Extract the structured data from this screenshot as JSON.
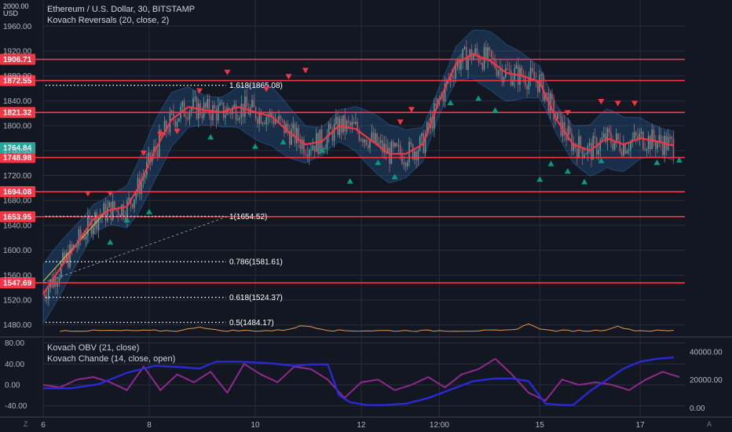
{
  "header": {
    "currency": "USD",
    "top_value": "2000.00",
    "title": "Ethereum / U.S. Dollar, 30, BITSTAMP",
    "indicator_main": "Kovach Reversals (20, close, 2)",
    "indicator_sub1": "Kovach OBV (21, close)",
    "indicator_sub2": "Kovach Chande (14, close, open)",
    "corner_left": "Z",
    "corner_right": "A"
  },
  "colors": {
    "background": "#131722",
    "red_line": "#f23645",
    "band": "#2b6cb0",
    "obv": "#2929d6",
    "chande": "#8e2a8e",
    "volume": "#e5954a",
    "up_marker": "#089981",
    "down_marker": "#f23645"
  },
  "chart_data": [
    {
      "type": "line",
      "name": "price",
      "y_axis_ticks": [
        1480,
        1520,
        1560,
        1600,
        1640,
        1680,
        1720,
        1760,
        1800,
        1840,
        1880,
        1920,
        1960
      ],
      "y_tick_labels": [
        "1480.00",
        "1520.00",
        "1560.00",
        "1600.00",
        "1640.00",
        "1680.00",
        "1720.00",
        "1760.00",
        "1800.00",
        "1840.00",
        "1880.00",
        "1920.00",
        "1960.00"
      ],
      "ylim": [
        1462,
        2002
      ],
      "x_tick_labels": [
        "6",
        "8",
        "10",
        "12",
        "12:00",
        "15",
        "17"
      ],
      "x_tick_pos": [
        0.5,
        2.4,
        4.3,
        6.2,
        7.6,
        9.4,
        11.2
      ],
      "xlim": [
        0.5,
        12
      ],
      "current_price": {
        "label": "1764.84",
        "value": 1764.84
      },
      "horizontal_levels": [
        {
          "label": "1906.71",
          "value": 1906.71
        },
        {
          "label": "1872.55",
          "value": 1872.55
        },
        {
          "label": "1821.32",
          "value": 1821.32
        },
        {
          "label": "1748.98",
          "value": 1748.98
        },
        {
          "label": "1694.08",
          "value": 1694.08
        },
        {
          "label": "1653.95",
          "value": 1653.95
        },
        {
          "label": "1547.69",
          "value": 1547.69
        }
      ],
      "fib_levels": [
        {
          "label": "1.618(1865.08)",
          "value": 1865.08
        },
        {
          "label": "1(1654.52)",
          "value": 1654.52
        },
        {
          "label": "0.786(1581.61)",
          "value": 1581.61
        },
        {
          "label": "0.618(1524.37)",
          "value": 1524.37
        },
        {
          "label": "0.5(1484.17)",
          "value": 1484.17
        }
      ],
      "ma_series": {
        "x": [
          0.5,
          0.8,
          1.1,
          1.4,
          1.7,
          2.0,
          2.2,
          2.5,
          2.8,
          3.1,
          3.4,
          3.7,
          4.0,
          4.3,
          4.6,
          4.9,
          5.2,
          5.5,
          5.8,
          6.1,
          6.4,
          6.7,
          7.0,
          7.3,
          7.6,
          7.9,
          8.2,
          8.5,
          8.8,
          9.1,
          9.4,
          9.7,
          10.0,
          10.3,
          10.6,
          10.9,
          11.2,
          11.5,
          11.8
        ],
        "y": [
          1530,
          1570,
          1610,
          1650,
          1665,
          1670,
          1700,
          1760,
          1810,
          1830,
          1825,
          1822,
          1830,
          1822,
          1815,
          1790,
          1770,
          1775,
          1800,
          1795,
          1775,
          1755,
          1755,
          1770,
          1840,
          1900,
          1915,
          1905,
          1885,
          1880,
          1870,
          1810,
          1770,
          1760,
          1780,
          1770,
          1780,
          1775,
          1768
        ]
      },
      "band_width": 35,
      "down_markers": [
        [
          1.3,
          1690
        ],
        [
          1.7,
          1690
        ],
        [
          2.3,
          1755
        ],
        [
          2.6,
          1785
        ],
        [
          2.9,
          1790
        ],
        [
          3.3,
          1855
        ],
        [
          3.8,
          1885
        ],
        [
          4.5,
          1858
        ],
        [
          4.9,
          1878
        ],
        [
          5.2,
          1888
        ],
        [
          6.9,
          1805
        ],
        [
          7.1,
          1825
        ],
        [
          9.9,
          1820
        ],
        [
          10.5,
          1838
        ],
        [
          10.8,
          1835
        ],
        [
          11.1,
          1835
        ]
      ],
      "up_markers": [
        [
          1.7,
          1614
        ],
        [
          2.0,
          1650
        ],
        [
          2.4,
          1663
        ],
        [
          3.5,
          1783
        ],
        [
          4.3,
          1768
        ],
        [
          4.8,
          1775
        ],
        [
          5.5,
          1762
        ],
        [
          6.0,
          1712
        ],
        [
          6.5,
          1742
        ],
        [
          6.8,
          1719
        ],
        [
          7.8,
          1838
        ],
        [
          8.3,
          1845
        ],
        [
          8.6,
          1826
        ],
        [
          9.4,
          1715
        ],
        [
          9.6,
          1740
        ],
        [
          9.9,
          1728
        ],
        [
          10.2,
          1711
        ],
        [
          10.5,
          1745
        ],
        [
          11.5,
          1742
        ],
        [
          11.9,
          1746
        ]
      ]
    },
    {
      "type": "line",
      "name": "oscillators",
      "y_axis_left_ticks": [
        "80.00",
        "40.00",
        "0.00",
        "-40.00"
      ],
      "y_axis_left_values": [
        80,
        40,
        0,
        -40
      ],
      "ylim_left": [
        -60,
        90
      ],
      "y_axis_right_ticks": [
        "40000.00",
        "20000.00",
        "0.00"
      ],
      "y_axis_right_values": [
        40000,
        20000,
        0
      ],
      "ylim_right": [
        -6000,
        50000
      ],
      "obv": {
        "x": [
          0.5,
          1.0,
          1.5,
          2.0,
          2.5,
          3.0,
          3.3,
          3.6,
          4.0,
          4.5,
          5.0,
          5.3,
          5.6,
          5.8,
          6.0,
          6.3,
          6.6,
          7.0,
          7.4,
          7.8,
          8.2,
          8.6,
          8.9,
          9.2,
          9.5,
          9.8,
          10.0,
          10.3,
          10.6,
          10.9,
          11.2,
          11.5,
          11.8
        ],
        "y": [
          14000,
          14000,
          17000,
          25000,
          30000,
          29000,
          28000,
          33000,
          33000,
          32000,
          30000,
          31000,
          31000,
          9000,
          4000,
          2000,
          2000,
          3000,
          7000,
          13000,
          19000,
          21000,
          21000,
          19000,
          3000,
          2000,
          2000,
          12000,
          20000,
          28000,
          33000,
          35000,
          36000
        ]
      },
      "chande": {
        "x": [
          0.5,
          0.8,
          1.1,
          1.4,
          1.7,
          2.0,
          2.3,
          2.6,
          2.9,
          3.2,
          3.5,
          3.8,
          4.1,
          4.4,
          4.7,
          5.0,
          5.3,
          5.6,
          5.9,
          6.2,
          6.5,
          6.8,
          7.1,
          7.4,
          7.7,
          8.0,
          8.3,
          8.6,
          8.9,
          9.2,
          9.5,
          9.8,
          10.1,
          10.4,
          10.7,
          11.0,
          11.3,
          11.6,
          11.9
        ],
        "y": [
          0,
          -5,
          10,
          15,
          5,
          -10,
          35,
          -10,
          20,
          5,
          25,
          -15,
          40,
          20,
          5,
          35,
          30,
          10,
          -25,
          5,
          10,
          -10,
          0,
          15,
          -5,
          20,
          30,
          50,
          20,
          -15,
          -30,
          10,
          0,
          5,
          0,
          -10,
          10,
          25,
          15
        ]
      }
    }
  ]
}
